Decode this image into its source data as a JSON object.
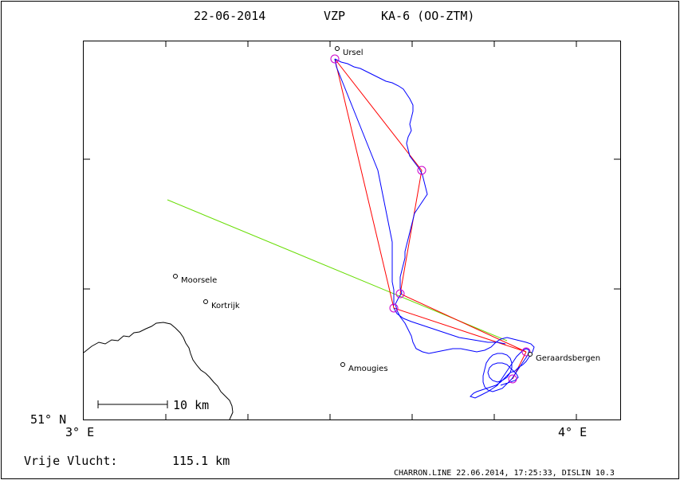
{
  "header": {
    "date": "22-06-2014",
    "club": "VZP",
    "glider": "KA-6 (OO-ZTM)"
  },
  "axes": {
    "lat_label": "51° N",
    "lon_label_left": "3° E",
    "lon_label_right": "4° E"
  },
  "scale_bar": {
    "label": "10 km"
  },
  "towns": [
    {
      "name": "Ursel"
    },
    {
      "name": "Moorsele"
    },
    {
      "name": "Kortrijk"
    },
    {
      "name": "Amougies"
    },
    {
      "name": "Geraardsbergen"
    }
  ],
  "flight": {
    "distance_label": "Vrije Vlucht:",
    "distance_value": "115.1 km"
  },
  "footer": {
    "credit": "CHARRON.LINE 22.06.2014, 17:25:33, DISLIN 10.3"
  },
  "colors": {
    "track": "#0000ff",
    "task_legs": "#ff0000",
    "turnpoints": "#cc00cc",
    "wind_line": "#66dd00",
    "frame": "#000000"
  }
}
